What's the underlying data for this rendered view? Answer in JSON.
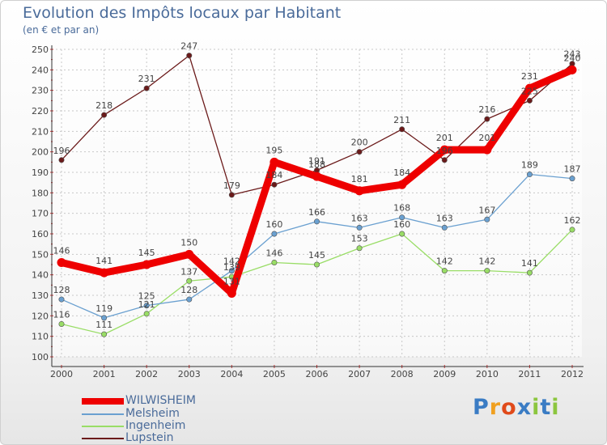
{
  "header": {
    "title": "Evolution des Impôts locaux par Habitant",
    "subtitle": "(en € et par an)"
  },
  "chart_data": {
    "type": "line",
    "title": "Evolution des Impôts locaux par Habitant",
    "subtitle": "(en € et par an)",
    "xlabel": "",
    "ylabel": "",
    "ylim": [
      100,
      250
    ],
    "yticks": [
      "100",
      "110",
      "120",
      "130",
      "140",
      "150",
      "160",
      "170",
      "180",
      "190",
      "200",
      "210",
      "220",
      "230",
      "240",
      "250"
    ],
    "categories": [
      "2000",
      "2001",
      "2002",
      "2003",
      "2004",
      "2005",
      "2006",
      "2007",
      "2008",
      "2009",
      "2010",
      "2011",
      "2012"
    ],
    "grid": true,
    "legend_position": "bottom-left",
    "series": [
      {
        "name": "Lupstein",
        "color": "#6b1a1a",
        "emphasis": false,
        "values": [
          196,
          218,
          231,
          247,
          179,
          184,
          191,
          200,
          211,
          196,
          216,
          225,
          243
        ],
        "labels": [
          "196",
          "218",
          "231",
          "247",
          "179",
          "184",
          "191",
          "200",
          "211",
          "196",
          "216",
          "225",
          "243"
        ]
      },
      {
        "name": "Ingenheim",
        "color": "#99dd66",
        "emphasis": false,
        "values": [
          116,
          111,
          121,
          137,
          139,
          146,
          145,
          153,
          160,
          142,
          142,
          141,
          162
        ],
        "labels": [
          "116",
          "111",
          "121",
          "137",
          "139",
          "146",
          "145",
          "153",
          "160",
          "142",
          "142",
          "141",
          "162"
        ]
      },
      {
        "name": "Melsheim",
        "color": "#6aa0d0",
        "emphasis": false,
        "values": [
          128,
          119,
          125,
          128,
          142,
          160,
          166,
          163,
          168,
          163,
          167,
          189,
          187
        ],
        "labels": [
          "128",
          "119",
          "125",
          "128",
          "142",
          "160",
          "166",
          "163",
          "168",
          "163",
          "167",
          "189",
          "187"
        ]
      },
      {
        "name": "WILWISHEIM",
        "color": "#ee0000",
        "emphasis": true,
        "values": [
          146,
          141,
          145,
          150,
          131,
          195,
          188,
          181,
          184,
          201,
          201,
          231,
          240
        ],
        "labels": [
          "146",
          "141",
          "145",
          "150",
          "131",
          "195",
          "188",
          "181",
          "184",
          "201",
          "201",
          "231",
          "240"
        ]
      }
    ],
    "legend": [
      "WILWISHEIM",
      "Melsheim",
      "Ingenheim",
      "Lupstein"
    ]
  },
  "logo": {
    "letters": [
      "P",
      "r",
      "o",
      "x",
      "i",
      "t",
      "i"
    ],
    "colors": [
      "#3a7cc4",
      "#f0a020",
      "#e04a1a",
      "#3a7cc4",
      "#8cc63f",
      "#3a7cc4",
      "#8cc63f"
    ]
  }
}
